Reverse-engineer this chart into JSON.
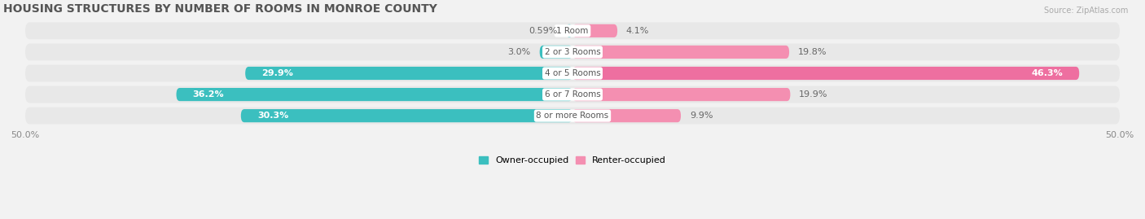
{
  "title": "HOUSING STRUCTURES BY NUMBER OF ROOMS IN MONROE COUNTY",
  "source": "Source: ZipAtlas.com",
  "categories": [
    "1 Room",
    "2 or 3 Rooms",
    "4 or 5 Rooms",
    "6 or 7 Rooms",
    "8 or more Rooms"
  ],
  "owner_values": [
    0.59,
    3.0,
    29.9,
    36.2,
    30.3
  ],
  "renter_values": [
    4.1,
    19.8,
    46.3,
    19.9,
    9.9
  ],
  "owner_color": "#3BBFBF",
  "renter_color": "#F48FB1",
  "renter_color_strong": "#EE6FA0",
  "background_color": "#F2F2F2",
  "row_bg_color": "#E8E8E8",
  "title_fontsize": 10,
  "label_fontsize": 8,
  "tick_fontsize": 8,
  "xlim": [
    -50,
    50
  ],
  "xtick_labels": [
    "50.0%",
    "50.0%"
  ]
}
